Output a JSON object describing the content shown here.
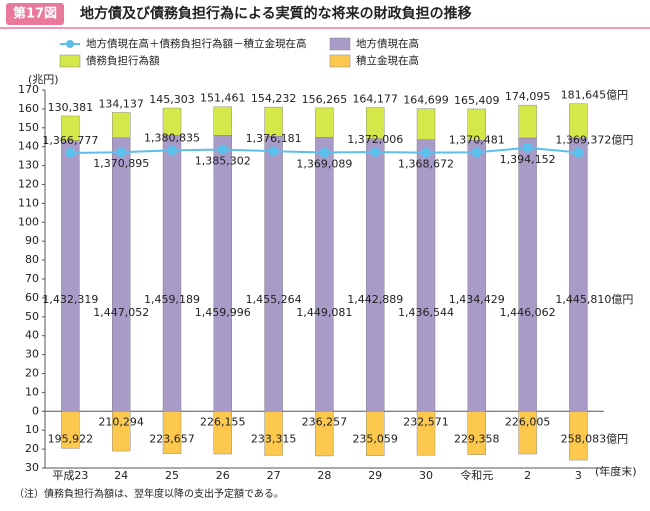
{
  "chart_data": {
    "type": "bar",
    "figure_number": "第17図",
    "title": "地方債及び債務負担行為による実質的な将来の財政負担の推移",
    "y_label": "(兆円)",
    "x_label": "(年度末)",
    "note": "（注）債務負担行為額は、翌年度以降の支出予定額である。",
    "categories": [
      "平成23",
      "24",
      "25",
      "26",
      "27",
      "28",
      "29",
      "30",
      "令和元",
      "2",
      "3"
    ],
    "ylim": [
      -30,
      170
    ],
    "yticks": [
      {
        "value": -30,
        "label": "30"
      },
      {
        "value": -20,
        "label": "20"
      },
      {
        "value": -10,
        "label": "10"
      },
      0,
      10,
      20,
      30,
      40,
      50,
      60,
      70,
      80,
      90,
      100,
      110,
      120,
      130,
      140,
      150,
      160,
      170
    ],
    "series": [
      {
        "name": "地方債現在高＋債務負担行為額－積立金現在高",
        "type": "line",
        "color": "#5bc0eb",
        "values": [
          136.6777,
          137.0895,
          138.0835,
          138.5302,
          137.6181,
          136.9089,
          137.2006,
          136.8672,
          137.0481,
          139.4152,
          136.9372
        ],
        "value_labels": [
          "1,366,777",
          "1,370,895",
          "1,380,835",
          "1,385,302",
          "1,376,181",
          "1,369,089",
          "1,372,006",
          "1,368,672",
          "1,370,481",
          "1,394,152",
          "1,369,372億円"
        ]
      },
      {
        "name": "地方債現在高",
        "type": "bar",
        "color": "#a99bc8",
        "values": [
          143.2319,
          144.7052,
          145.9189,
          145.9996,
          145.5264,
          144.9081,
          144.2889,
          143.6544,
          143.4429,
          144.6062,
          144.581
        ],
        "value_labels": [
          "1,432,319",
          "1,447,052",
          "1,459,189",
          "1,459,996",
          "1,455,264",
          "1,449,081",
          "1,442,889",
          "1,436,544",
          "1,434,429",
          "1,446,062",
          "1,445,810億円"
        ]
      },
      {
        "name": "債務負担行為額",
        "type": "bar",
        "color": "#d4e84a",
        "values": [
          13.0381,
          13.4137,
          14.5303,
          15.1461,
          15.4232,
          15.6265,
          16.4177,
          16.4699,
          16.5409,
          17.4095,
          18.1645
        ],
        "value_labels": [
          "130,381",
          "134,137",
          "145,303",
          "151,461",
          "154,232",
          "156,265",
          "164,177",
          "164,699",
          "165,409",
          "174,095",
          "181,645億円"
        ]
      },
      {
        "name": "積立金現在高",
        "type": "bar",
        "color": "#fcc94e",
        "values": [
          -19.5922,
          -21.0294,
          -22.3657,
          -22.6155,
          -23.3315,
          -23.6257,
          -23.5059,
          -23.2571,
          -22.9358,
          -22.6005,
          -25.8083
        ],
        "value_labels": [
          "195,922",
          "210,294",
          "223,657",
          "226,155",
          "233,315",
          "236,257",
          "235,059",
          "232,571",
          "229,358",
          "226,005",
          "258,083億円"
        ]
      }
    ]
  }
}
